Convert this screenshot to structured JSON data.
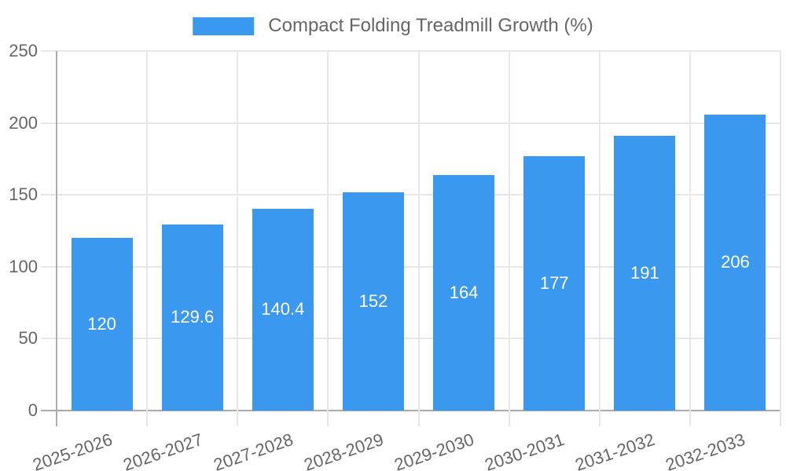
{
  "chart_data": {
    "type": "bar",
    "title": "Compact Folding Treadmill Growth (%)",
    "legend": {
      "label": "Compact Folding Treadmill Growth (%)",
      "position": "top"
    },
    "categories": [
      "2025-2026",
      "2026-2027",
      "2027-2028",
      "2028-2029",
      "2029-2030",
      "2030-2031",
      "2031-2032",
      "2032-2033"
    ],
    "series": [
      {
        "name": "Compact Folding Treadmill Growth (%)",
        "values": [
          120,
          129.6,
          140.4,
          152,
          164,
          177,
          191,
          206
        ]
      }
    ],
    "value_labels": [
      "120",
      "129.6",
      "140.4",
      "152",
      "164",
      "177",
      "191",
      "206"
    ],
    "xlabel": "",
    "ylabel": "",
    "ylim": [
      0,
      250
    ],
    "yticks": [
      0,
      50,
      100,
      150,
      200,
      250
    ],
    "grid": true,
    "legend_position": "top",
    "colors": {
      "bar": "#3a99ee",
      "grid_light": "#e7e7e7",
      "axis_dark": "#ababab",
      "axis_text": "#666666",
      "value_label": "#ffffff",
      "background": "#ffffff"
    }
  }
}
